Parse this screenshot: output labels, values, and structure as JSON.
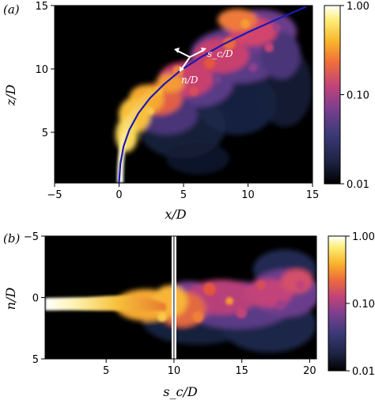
{
  "chart_data": [
    {
      "type": "heatmap",
      "panel_label": "(a)",
      "xlabel": "x/D",
      "ylabel": "z/D",
      "xlim": [
        -5,
        15
      ],
      "ylim": [
        1,
        15
      ],
      "xticks": [
        "−5",
        "0",
        "5",
        "10",
        "15"
      ],
      "xtick_values": [
        -5,
        0,
        5,
        10,
        15
      ],
      "yticks": [
        "5",
        "10",
        "15"
      ],
      "ytick_values": [
        5,
        10,
        15
      ],
      "colorbar": {
        "scale": "log",
        "range": [
          0.01,
          1.0
        ],
        "ticks": [
          "1.00",
          "0.10",
          "0.01"
        ],
        "tick_values": [
          1.0,
          0.1,
          0.01
        ],
        "colormap": [
          "#000000",
          "#1c2240",
          "#3c3a78",
          "#7a3f8e",
          "#c2437a",
          "#ee6d3a",
          "#f9b52c",
          "#fcef7a",
          "#ffffff"
        ]
      },
      "annotations": [
        "s_c/D",
        "n/D"
      ],
      "trajectory": {
        "color": "#1a1ab4",
        "x": [
          0.0,
          0.1,
          0.35,
          0.8,
          1.5,
          2.4,
          3.5,
          4.8,
          6.3,
          8.0,
          10.0,
          12.2,
          14.5
        ],
        "z": [
          1.0,
          2.5,
          3.9,
          5.2,
          6.5,
          7.7,
          8.8,
          9.9,
          10.9,
          11.9,
          12.9,
          13.9,
          14.9
        ]
      }
    },
    {
      "type": "heatmap",
      "panel_label": "(b)",
      "xlabel": "s_c/D",
      "ylabel": "n/D",
      "xlim": [
        0.5,
        20.5
      ],
      "ylim": [
        5,
        -5
      ],
      "xticks": [
        "5",
        "10",
        "15",
        "20"
      ],
      "xtick_values": [
        5,
        10,
        15,
        20
      ],
      "yticks": [
        "−5",
        "0",
        "5"
      ],
      "ytick_values": [
        -5,
        0,
        5
      ],
      "colorbar": {
        "scale": "log",
        "range": [
          0.01,
          1.0
        ],
        "ticks": [
          "1.00",
          "0.10",
          "0.01"
        ],
        "tick_values": [
          1.0,
          0.1,
          0.01
        ],
        "colormap": [
          "#000000",
          "#1c2240",
          "#3c3a78",
          "#7a3f8e",
          "#c2437a",
          "#ee6d3a",
          "#f9b52c",
          "#fcef7a",
          "#ffffff"
        ]
      },
      "marker_line_s": 10
    }
  ]
}
